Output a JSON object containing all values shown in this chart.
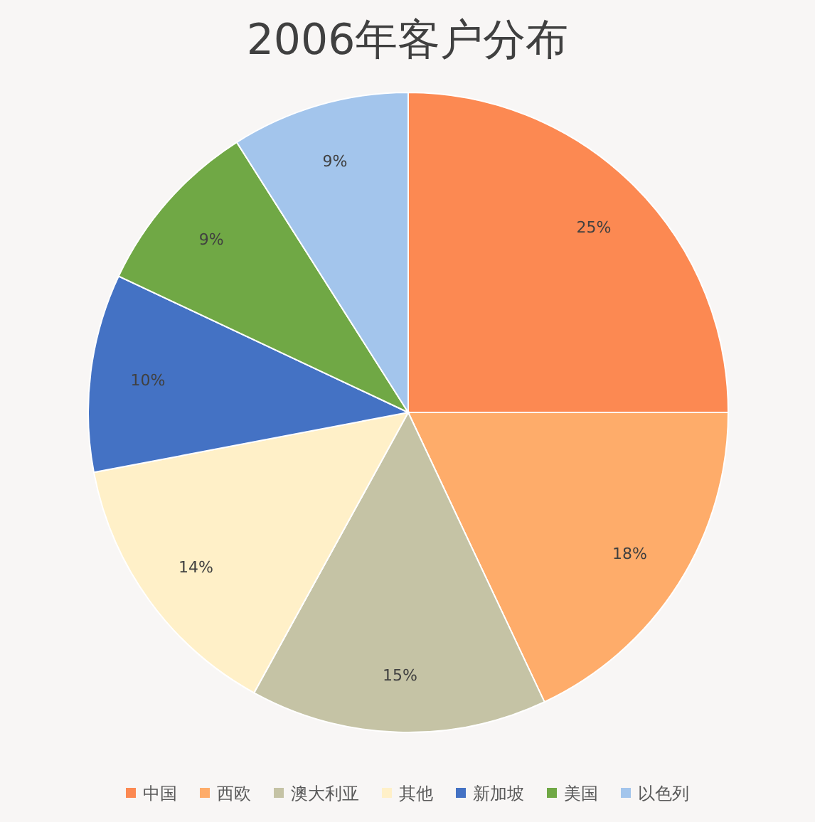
{
  "chart_data": {
    "type": "pie",
    "title": "2006年客户分布",
    "categories": [
      "中国",
      "西欧",
      "澳大利亚",
      "其他",
      "新加坡",
      "美国",
      "以色列"
    ],
    "values": [
      25,
      18,
      15,
      14,
      10,
      9,
      9
    ],
    "value_labels": [
      "25%",
      "18%",
      "15%",
      "14%",
      "10%",
      "9%",
      "9%"
    ],
    "colors": [
      "#fc8952",
      "#feac6a",
      "#c5c3a5",
      "#fff0c8",
      "#4472c4",
      "#70a845",
      "#a3c5ec"
    ],
    "legend": "bottom"
  }
}
